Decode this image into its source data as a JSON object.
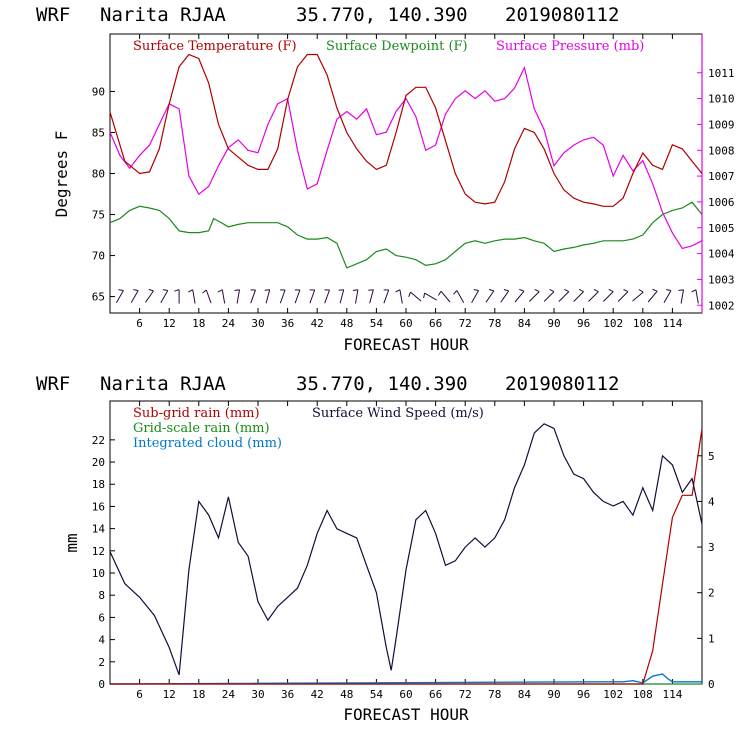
{
  "chart_data": [
    {
      "type": "line",
      "header": {
        "model": "WRF",
        "station": "Narita RJAA",
        "coords": "35.770, 140.390",
        "run": "2019080112"
      },
      "xlabel": "FORECAST HOUR",
      "ylabel": "Degrees F",
      "xlim": [
        0,
        120
      ],
      "ylim": [
        63,
        97
      ],
      "y2lim": [
        1001.7,
        1012.5
      ],
      "x_ticks": [
        "6",
        "12",
        "18",
        "24",
        "30",
        "36",
        "42",
        "48",
        "54",
        "60",
        "66",
        "72",
        "78",
        "84",
        "90",
        "96",
        "102",
        "108",
        "114"
      ],
      "y_ticks": [
        "65",
        "70",
        "75",
        "80",
        "85",
        "90"
      ],
      "y2_ticks": [
        "1002",
        "1003",
        "1004",
        "1005",
        "1006",
        "1007",
        "1008",
        "1009",
        "1010",
        "1011"
      ],
      "colors": {
        "temperature": "#b00000",
        "dewpoint": "#1a8a1a",
        "pressure": "#e600e6",
        "wind": "#1a0a3a"
      },
      "series": [
        {
          "name": "Surface Temperature (F)",
          "x": [
            0,
            3,
            6,
            8,
            10,
            12,
            14,
            16,
            18,
            20,
            22,
            24,
            26,
            28,
            30,
            32,
            34,
            36,
            38,
            40,
            42,
            44,
            46,
            48,
            50,
            52,
            54,
            56,
            58,
            60,
            62,
            64,
            66,
            68,
            70,
            72,
            74,
            76,
            78,
            80,
            82,
            84,
            86,
            88,
            90,
            92,
            94,
            96,
            98,
            100,
            102,
            104,
            106,
            108,
            110,
            112,
            114,
            116,
            118,
            120
          ],
          "values": [
            87.5,
            81.5,
            80.0,
            80.2,
            83.0,
            88.5,
            93.0,
            94.5,
            94.0,
            91.0,
            86.0,
            83.0,
            82.0,
            81.0,
            80.5,
            80.5,
            83.0,
            89.0,
            93.0,
            94.5,
            94.5,
            92.0,
            88.0,
            85.0,
            83.0,
            81.5,
            80.5,
            81.0,
            85.0,
            89.5,
            90.5,
            90.5,
            88.0,
            84.0,
            80.0,
            77.5,
            76.5,
            76.3,
            76.5,
            79.0,
            83.0,
            85.5,
            85.0,
            83.0,
            80.0,
            78.0,
            77.0,
            76.5,
            76.3,
            76.0,
            76.0,
            77.0,
            80.0,
            82.5,
            81.0,
            80.5,
            83.5,
            83.0,
            81.5,
            80.0
          ]
        },
        {
          "name": "Surface Dewpoint (F)",
          "x": [
            0,
            2,
            4,
            6,
            8,
            10,
            12,
            14,
            16,
            18,
            20,
            21,
            22,
            24,
            26,
            28,
            30,
            32,
            34,
            36,
            38,
            40,
            42,
            44,
            46,
            48,
            50,
            52,
            54,
            56,
            58,
            60,
            62,
            64,
            66,
            68,
            70,
            72,
            74,
            76,
            78,
            80,
            82,
            84,
            86,
            88,
            90,
            92,
            94,
            96,
            98,
            100,
            102,
            104,
            106,
            108,
            110,
            112,
            114,
            116,
            118,
            120
          ],
          "values": [
            74.0,
            74.5,
            75.5,
            76.0,
            75.8,
            75.5,
            74.5,
            73.0,
            72.8,
            72.8,
            73.0,
            74.5,
            74.2,
            73.5,
            73.8,
            74.0,
            74.0,
            74.0,
            74.0,
            73.5,
            72.5,
            72.0,
            72.0,
            72.2,
            71.5,
            68.5,
            69.0,
            69.5,
            70.5,
            70.8,
            70.0,
            69.8,
            69.5,
            68.8,
            69.0,
            69.5,
            70.5,
            71.5,
            71.8,
            71.5,
            71.8,
            72.0,
            72.0,
            72.2,
            71.8,
            71.5,
            70.5,
            70.8,
            71.0,
            71.3,
            71.5,
            71.8,
            71.8,
            71.8,
            72.0,
            72.5,
            74.0,
            75.0,
            75.5,
            75.8,
            76.5,
            75.0
          ]
        },
        {
          "name": "Surface Pressure (mb)",
          "axis": "right",
          "x": [
            0,
            2,
            4,
            6,
            8,
            10,
            12,
            14,
            16,
            18,
            20,
            22,
            24,
            26,
            28,
            30,
            32,
            34,
            36,
            38,
            40,
            42,
            44,
            46,
            48,
            50,
            52,
            54,
            56,
            58,
            60,
            62,
            64,
            66,
            68,
            70,
            72,
            74,
            76,
            78,
            80,
            82,
            84,
            86,
            88,
            90,
            92,
            94,
            96,
            98,
            100,
            102,
            104,
            106,
            108,
            110,
            112,
            114,
            116,
            118,
            120
          ],
          "values": [
            1008.7,
            1007.8,
            1007.3,
            1007.8,
            1008.2,
            1009.0,
            1009.8,
            1009.6,
            1007.0,
            1006.3,
            1006.6,
            1007.4,
            1008.1,
            1008.4,
            1008.0,
            1007.9,
            1009.0,
            1009.8,
            1010.0,
            1008.0,
            1006.5,
            1006.7,
            1008.0,
            1009.2,
            1009.5,
            1009.2,
            1009.6,
            1008.6,
            1008.7,
            1009.5,
            1010.0,
            1009.3,
            1008.0,
            1008.2,
            1009.4,
            1010.0,
            1010.3,
            1010.0,
            1010.3,
            1009.9,
            1010.0,
            1010.4,
            1011.2,
            1009.6,
            1008.8,
            1007.4,
            1007.9,
            1008.2,
            1008.4,
            1008.5,
            1008.2,
            1007.0,
            1007.8,
            1007.2,
            1007.6,
            1006.7,
            1005.6,
            1004.8,
            1004.2,
            1004.3,
            1004.5
          ]
        }
      ],
      "legend": [
        "Surface Temperature (F)",
        "Surface Dewpoint (F)",
        "Surface Pressure (mb)"
      ],
      "wind_barbs": {
        "y_level": 65,
        "x": [
          2,
          5,
          8,
          11,
          14,
          17,
          20,
          23,
          26,
          29,
          32,
          35,
          38,
          41,
          44,
          47,
          50,
          53,
          56,
          59,
          62,
          65,
          68,
          71,
          74,
          77,
          80,
          83,
          86,
          89,
          92,
          95,
          98,
          101,
          104,
          107,
          110,
          113,
          116,
          119
        ],
        "angle_deg": [
          60,
          60,
          55,
          60,
          90,
          100,
          110,
          100,
          80,
          70,
          75,
          70,
          70,
          70,
          70,
          75,
          80,
          75,
          70,
          100,
          140,
          150,
          130,
          120,
          60,
          55,
          55,
          50,
          45,
          45,
          45,
          45,
          45,
          45,
          45,
          40,
          50,
          60,
          80,
          100
        ]
      }
    },
    {
      "type": "line",
      "header": {
        "model": "WRF",
        "station": "Narita RJAA",
        "coords": "35.770, 140.390",
        "run": "2019080112"
      },
      "xlabel": "FORECAST HOUR",
      "ylabel": "mm",
      "xlim": [
        0,
        120
      ],
      "ylim": [
        0,
        25.5
      ],
      "y2lim": [
        0,
        6.2
      ],
      "x_ticks": [
        "6",
        "12",
        "18",
        "24",
        "30",
        "36",
        "42",
        "48",
        "54",
        "60",
        "66",
        "72",
        "78",
        "84",
        "90",
        "96",
        "102",
        "108",
        "114"
      ],
      "y_ticks": [
        "0",
        "2",
        "4",
        "6",
        "8",
        "10",
        "12",
        "14",
        "16",
        "18",
        "20",
        "22"
      ],
      "y2_ticks": [
        "0",
        "1",
        "2",
        "3",
        "4",
        "5"
      ],
      "series": [
        {
          "name": "Sub-grid rain (mm)",
          "x": [
            0,
            108,
            110,
            112,
            114,
            116,
            118,
            120
          ],
          "values": [
            0,
            0,
            3,
            9,
            15,
            17,
            17,
            23
          ]
        },
        {
          "name": "Grid-scale rain (mm)",
          "x": [
            0,
            120
          ],
          "values": [
            0,
            0
          ]
        },
        {
          "name": "Integrated cloud (mm)",
          "x": [
            0,
            100,
            104,
            106,
            108,
            110,
            112,
            113,
            114,
            116,
            118,
            120
          ],
          "values": [
            0,
            0.2,
            0.2,
            0.3,
            0.1,
            0.7,
            0.9,
            0.5,
            0.2,
            0.2,
            0.2,
            0.2
          ]
        },
        {
          "name": "Surface Wind Speed (m/s)",
          "axis": "right",
          "x": [
            0,
            3,
            6,
            9,
            12,
            14,
            16,
            18,
            20,
            22,
            24,
            26,
            28,
            30,
            32,
            34,
            36,
            38,
            40,
            42,
            44,
            46,
            48,
            50,
            52,
            54,
            56,
            57,
            58,
            60,
            62,
            64,
            66,
            68,
            70,
            72,
            74,
            76,
            78,
            80,
            82,
            84,
            86,
            88,
            90,
            92,
            94,
            96,
            98,
            100,
            102,
            104,
            106,
            108,
            110,
            112,
            114,
            116,
            118,
            120
          ],
          "values": [
            2.9,
            2.2,
            1.9,
            1.5,
            0.8,
            0.2,
            2.5,
            4.0,
            3.7,
            3.2,
            4.1,
            3.1,
            2.8,
            1.8,
            1.4,
            1.7,
            1.9,
            2.1,
            2.6,
            3.3,
            3.8,
            3.4,
            3.3,
            3.2,
            2.6,
            2.0,
            0.8,
            0.3,
            1.0,
            2.5,
            3.6,
            3.8,
            3.3,
            2.6,
            2.7,
            3.0,
            3.2,
            3.0,
            3.2,
            3.6,
            4.3,
            4.8,
            5.5,
            5.7,
            5.6,
            5.0,
            4.6,
            4.5,
            4.2,
            4.0,
            3.9,
            4.0,
            3.7,
            4.3,
            3.8,
            5.0,
            4.8,
            4.2,
            4.5,
            3.5
          ]
        }
      ],
      "legend": [
        "Sub-grid rain (mm)",
        "Grid-scale rain (mm)",
        "Integrated cloud (mm)",
        "Surface Wind Speed (m/s)"
      ]
    }
  ]
}
